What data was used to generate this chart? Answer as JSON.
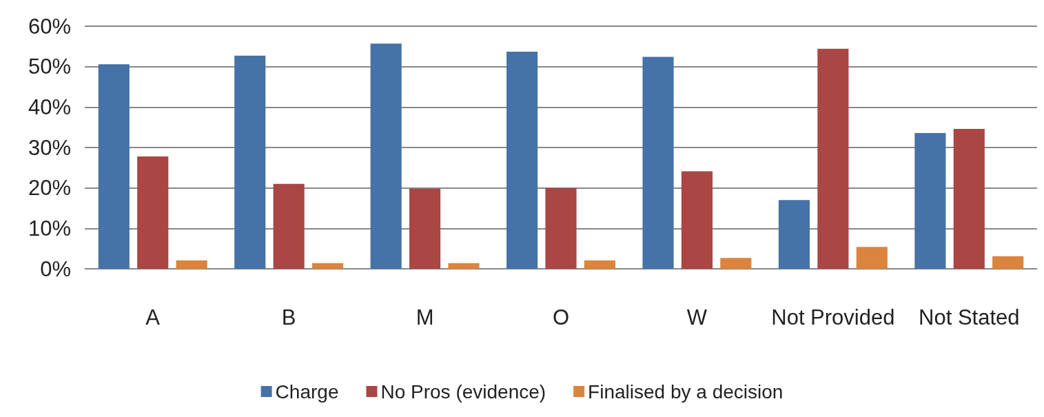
{
  "chart_data": {
    "type": "bar",
    "categories": [
      "A",
      "B",
      "M",
      "O",
      "W",
      "Not Provided",
      "Not Stated"
    ],
    "series": [
      {
        "name": "Charge",
        "color": "#4572a7",
        "values": [
          50.6,
          52.7,
          55.7,
          53.7,
          52.4,
          17.0,
          33.6
        ]
      },
      {
        "name": "No Pros (evidence)",
        "color": "#aa4643",
        "values": [
          27.8,
          21.0,
          19.8,
          20.0,
          24.1,
          54.4,
          34.6
        ]
      },
      {
        "name": "Finalised by a decision",
        "color": "#db843d",
        "values": [
          2.1,
          1.4,
          1.4,
          2.1,
          2.7,
          5.4,
          3.1
        ]
      }
    ],
    "ylim": [
      0,
      60
    ],
    "yticks": [
      {
        "value": 0,
        "label": "0%"
      },
      {
        "value": 10,
        "label": "10%"
      },
      {
        "value": 20,
        "label": "20%"
      },
      {
        "value": 30,
        "label": "30%"
      },
      {
        "value": 40,
        "label": "40%"
      },
      {
        "value": 50,
        "label": "50%"
      },
      {
        "value": 60,
        "label": "60%"
      }
    ],
    "grid": "y",
    "legend": "bottom"
  }
}
